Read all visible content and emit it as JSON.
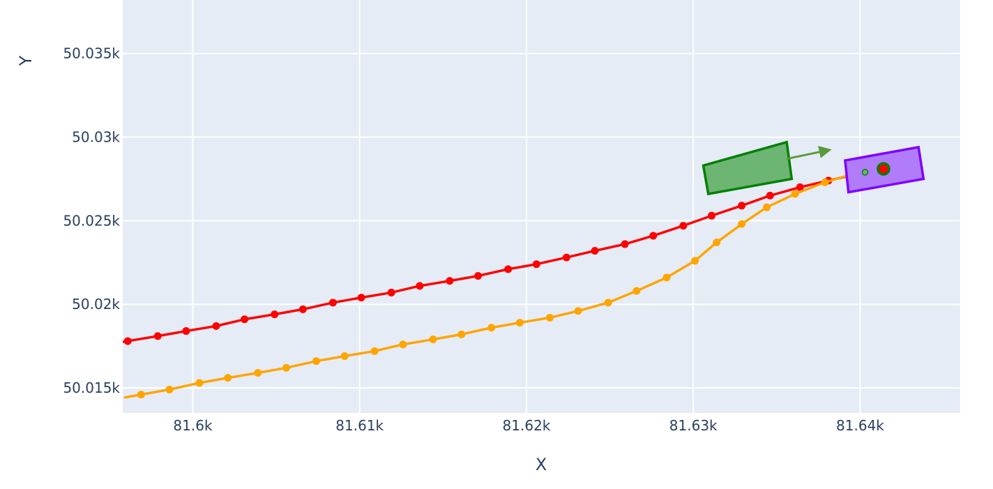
{
  "chart_data": {
    "type": "scatter",
    "xlabel": "X",
    "ylabel": "Y",
    "xlim": [
      81595.8,
      81646.0
    ],
    "ylim": [
      50013.5,
      50038.2
    ],
    "grid": true,
    "x_ticks": [
      {
        "value": 81600,
        "label": "81.6k"
      },
      {
        "value": 81610,
        "label": "81.61k"
      },
      {
        "value": 81620,
        "label": "81.62k"
      },
      {
        "value": 81630,
        "label": "81.63k"
      },
      {
        "value": 81640,
        "label": "81.64k"
      }
    ],
    "y_ticks": [
      {
        "value": 50015,
        "label": "50.015k"
      },
      {
        "value": 50020,
        "label": "50.02k"
      },
      {
        "value": 50025,
        "label": "50.025k"
      },
      {
        "value": 50030,
        "label": "50.03k"
      },
      {
        "value": 50035,
        "label": "50.035k"
      }
    ],
    "series": [
      {
        "color": "#ff0000",
        "mode": "lines+markers",
        "x": [
          81596.1,
          81597.9,
          81599.6,
          81601.4,
          81603.1,
          81604.9,
          81606.6,
          81608.4,
          81610.1,
          81611.9,
          81613.6,
          81615.4,
          81617.1,
          81618.9,
          81620.6,
          81622.4,
          81624.1,
          81625.9,
          81627.6,
          81629.4,
          81631.1,
          81632.9,
          81634.6,
          81636.4,
          81638.1,
          81639.9,
          81641.4
        ],
        "y": [
          50017.8,
          50018.1,
          50018.4,
          50018.7,
          50019.1,
          50019.4,
          50019.7,
          50020.1,
          50020.4,
          50020.7,
          50021.1,
          50021.4,
          50021.7,
          50022.1,
          50022.4,
          50022.8,
          50023.2,
          50023.6,
          50024.1,
          50024.7,
          50025.3,
          50025.9,
          50026.5,
          50027.0,
          50027.4,
          50027.8,
          50028.1
        ]
      },
      {
        "color": "#ffa500",
        "mode": "lines+markers",
        "x": [
          81596.9,
          81598.6,
          81600.4,
          81602.1,
          81603.9,
          81605.6,
          81607.4,
          81609.1,
          81610.9,
          81612.6,
          81614.4,
          81616.1,
          81617.9,
          81619.6,
          81621.4,
          81623.1,
          81624.9,
          81626.6,
          81628.4,
          81630.1,
          81631.4,
          81632.9,
          81634.4,
          81636.1,
          81637.9,
          81639.6,
          81641.1
        ],
        "y": [
          50014.6,
          50014.9,
          50015.3,
          50015.6,
          50015.9,
          50016.2,
          50016.6,
          50016.9,
          50017.2,
          50017.6,
          50017.9,
          50018.2,
          50018.6,
          50018.9,
          50019.2,
          50019.6,
          50020.1,
          50020.8,
          50021.6,
          50022.6,
          50023.7,
          50024.8,
          50025.8,
          50026.6,
          50027.3,
          50027.8,
          50028.0
        ]
      }
    ],
    "shapes": [
      {
        "kind": "rectangle",
        "fill": "#6db572",
        "stroke": "#008000",
        "corners": [
          [
            81630.6,
            50028.3
          ],
          [
            81635.6,
            50029.7
          ],
          [
            81635.9,
            50027.5
          ],
          [
            81630.9,
            50026.6
          ]
        ]
      },
      {
        "kind": "arrow",
        "color": "#5a9a3c",
        "from": [
          81635.6,
          50028.7
        ],
        "to": [
          81638.0,
          50029.2
        ]
      },
      {
        "kind": "rectangle",
        "fill": "#b07cfa",
        "stroke": "#8000ff",
        "corners": [
          [
            81639.1,
            50028.6
          ],
          [
            81643.5,
            50029.4
          ],
          [
            81643.8,
            50027.5
          ],
          [
            81639.3,
            50026.7
          ]
        ]
      },
      {
        "kind": "marker",
        "fill": "#ff0000",
        "stroke": "#008000",
        "at": [
          81641.4,
          50028.1
        ]
      },
      {
        "kind": "marker-small",
        "fill": "#6db572",
        "stroke": "#008000",
        "at": [
          81640.3,
          50027.9
        ]
      }
    ]
  }
}
